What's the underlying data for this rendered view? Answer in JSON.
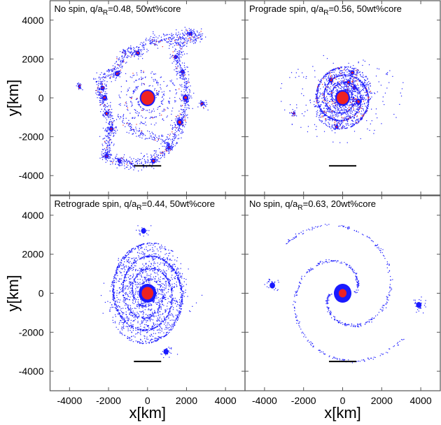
{
  "chart_data": {
    "type": "scatter",
    "xlabel": "x[km]",
    "ylabel": "y[km]",
    "xlim": [
      -5000,
      5000
    ],
    "ylim": [
      -5000,
      5000
    ],
    "xticks": [
      -4000,
      -2000,
      0,
      2000,
      4000
    ],
    "yticks": [
      -4000,
      -2000,
      0,
      2000,
      4000
    ],
    "xtick_labels": [
      "-4000",
      "-2000",
      "0",
      "2000",
      "4000"
    ],
    "ytick_labels": [
      "-4000",
      "-2000",
      "0",
      "2000",
      "4000"
    ],
    "grid": false,
    "colors": {
      "particle_primary": "#1a1aff",
      "particle_secondary": "#ee2222",
      "scale_bar": "#000000"
    },
    "panels": [
      {
        "title": {
          "pre": "No spin, q/a",
          "sub": "R",
          "post": "=0.48, 50wt%core"
        },
        "scale_bar": {
          "x": [
            -700,
            700
          ],
          "y": -3500
        },
        "central_body": {
          "x": 0,
          "y": 0,
          "r_red": 330,
          "r_blue": 400
        },
        "spiral": {
          "r_start": 500,
          "r_end": 1500,
          "turns": 1.6,
          "arms": 2,
          "count": 260
        },
        "outer_ring": [
          [
            -2500,
            900
          ],
          [
            -1600,
            1500
          ],
          [
            -1200,
            2300
          ],
          [
            -500,
            2400
          ],
          [
            200,
            2900
          ],
          [
            1200,
            3000
          ],
          [
            2200,
            3400
          ],
          [
            2700,
            3200
          ],
          [
            1500,
            2800
          ],
          [
            1600,
            1600
          ],
          [
            1900,
            900
          ],
          [
            1950,
            0
          ],
          [
            1800,
            -900
          ],
          [
            1650,
            -1300
          ],
          [
            1200,
            -2500
          ],
          [
            300,
            -3200
          ],
          [
            -500,
            -3400
          ],
          [
            -1500,
            -3250
          ],
          [
            -2100,
            -3000
          ],
          [
            -2000,
            -2000
          ],
          [
            -1900,
            -1200
          ],
          [
            -2300,
            -200
          ],
          [
            -2500,
            900
          ]
        ],
        "inner_loop": [
          [
            -1500,
            -900
          ],
          [
            -800,
            -1700
          ],
          [
            200,
            -2000
          ],
          [
            900,
            -2200
          ],
          [
            1300,
            -2500
          ]
        ],
        "ring_count": 1400,
        "clumps": [
          [
            -3500,
            600,
            80
          ],
          [
            -2200,
            0,
            130
          ],
          [
            -2300,
            500,
            110
          ],
          [
            -1550,
            1250,
            130
          ],
          [
            -500,
            2300,
            120
          ],
          [
            2200,
            3300,
            80
          ],
          [
            1450,
            2100,
            100
          ],
          [
            1800,
            1350,
            100
          ],
          [
            1950,
            0,
            150
          ],
          [
            2800,
            -300,
            100
          ],
          [
            1650,
            -1250,
            160
          ],
          [
            1100,
            -2550,
            90
          ],
          [
            300,
            -3250,
            120
          ],
          [
            -1450,
            -3250,
            90
          ],
          [
            -2100,
            -3000,
            110
          ],
          [
            -1850,
            -1600,
            110
          ],
          [
            -2100,
            -800,
            100
          ]
        ],
        "red_fraction": 0.06,
        "seed": 11
      },
      {
        "title": {
          "pre": "Prograde spin, q/a",
          "sub": "R",
          "post": "=0.56, 50wt%core"
        },
        "scale_bar": {
          "x": [
            -700,
            700
          ],
          "y": -3500
        },
        "central_body": {
          "x": 0,
          "y": 0,
          "r_red": 300,
          "r_blue": 380
        },
        "cloud": {
          "rx": 1500,
          "ry": 1550,
          "count": 1900,
          "halo_count": 120,
          "halo_r": 3300
        },
        "clumps": [
          [
            800,
            -200,
            150
          ],
          [
            300,
            800,
            110
          ],
          [
            500,
            1300,
            110
          ],
          [
            -600,
            900,
            110
          ],
          [
            -2500,
            -800,
            60
          ],
          [
            -300,
            -1500,
            90
          ],
          [
            600,
            500,
            90
          ]
        ],
        "red_fraction": 0.07,
        "seed": 23
      },
      {
        "title": {
          "pre": "Retrograde spin, q/a",
          "sub": "R",
          "post": "=0.44, 50wt%core"
        },
        "scale_bar": {
          "x": [
            -700,
            700
          ],
          "y": -3500
        },
        "central_body": {
          "x": 0,
          "y": 0,
          "r_red": 300,
          "r_blue": 450
        },
        "cloud": {
          "rx": 2000,
          "ry": 2500,
          "count": 2300,
          "halo_count": 30,
          "halo_r": 3000
        },
        "clumps": [
          [
            -200,
            3200,
            130
          ],
          [
            950,
            -3000,
            130
          ]
        ],
        "red_fraction": 0,
        "seed": 37
      },
      {
        "title": {
          "pre": "No spin, q/a",
          "sub": "R",
          "post": "=0.63, 20wt%core"
        },
        "scale_bar": {
          "x": [
            -700,
            700
          ],
          "y": -3500
        },
        "central_body": {
          "x": 0,
          "y": 0,
          "r_red": 200,
          "r_blue": 450
        },
        "spiral": {
          "r_start": 600,
          "r_end": 3800,
          "turns": 0.9,
          "arms": 2,
          "count": 520
        },
        "clumps": [
          [
            -3600,
            400,
            140
          ],
          [
            3900,
            -600,
            140
          ]
        ],
        "red_fraction": 0,
        "seed": 53
      }
    ]
  }
}
